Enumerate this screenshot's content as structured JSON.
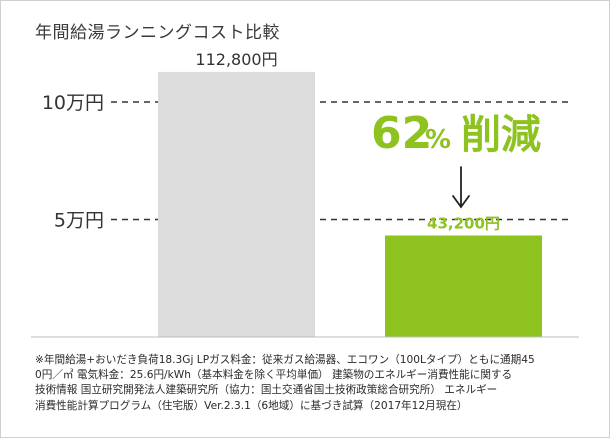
{
  "chart_data": {
    "type": "bar",
    "title": "年間給湯ランニングコスト比較",
    "xlabel": "",
    "ylabel": "",
    "unit": "円",
    "categories": [
      "",
      ""
    ],
    "values": [
      112800,
      43200
    ],
    "value_labels": [
      "112,800円",
      "43,200円"
    ],
    "bar_colors": [
      "#dcdcdc",
      "#8dc21f"
    ],
    "value_label_colors": [
      "#333333",
      "#8dc21f"
    ],
    "gridlines": [
      {
        "value": 50000,
        "label": "5万円"
      },
      {
        "value": 100000,
        "label": "10万円"
      }
    ],
    "grid_style": "dashed",
    "annotation": {
      "number": "62",
      "percent": "%",
      "text": "削減",
      "color": "#8dc21f",
      "arrow": "down-arrow-icon"
    }
  },
  "footnote_lines": [
    "※年間給湯+おいだき負荷18.3Gj LPガス料金：従来ガス給湯器、エコワン（100Lタイプ）ともに通期45",
    "0円／㎥ 電気料金：25.6円/kWh（基本料金を除く平均単価） 建築物のエネルギー消費性能に関する",
    "技術情報 国立研究開発法人建築研究所（協力：国土交通省国土技術政策総合研究所） エネルギー",
    "消費性能計算プログラム（住宅版）Ver.2.3.1（6地域）に基づき試算（2017年12月現在）"
  ],
  "colors": {
    "text": "#333333",
    "grid": "#333333",
    "baseline": "#bdbdbd",
    "accent": "#8dc21f"
  }
}
